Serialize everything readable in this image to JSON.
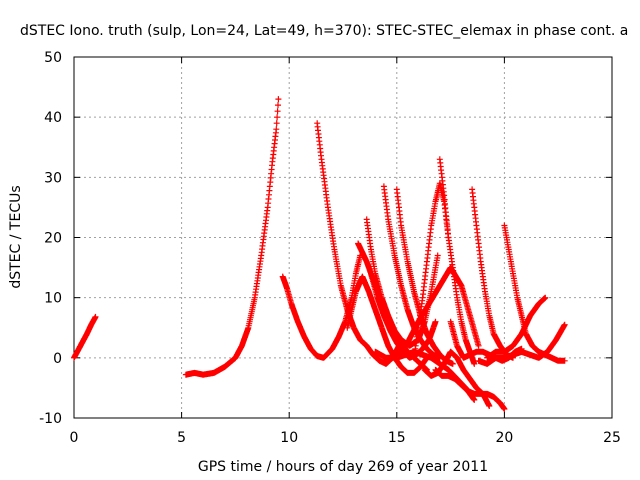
{
  "chart_data": {
    "type": "scatter",
    "title": "dSTEC Iono. truth (sulp, Lon=24, Lat=49, h=370): STEC-STEC_elemax in phase cont. a",
    "xlabel": "GPS time / hours of day 269 of year 2011",
    "ylabel": "dSTEC  / TECUs",
    "xlim": [
      0,
      25
    ],
    "ylim": [
      -10,
      50
    ],
    "x_ticks": [
      "0",
      "5",
      "10",
      "15",
      "20",
      "25"
    ],
    "y_ticks": [
      "-10",
      "0",
      "10",
      "20",
      "30",
      "40",
      "50"
    ],
    "grid": true,
    "marker": "+",
    "color": "#ff0000",
    "series": [
      {
        "x": [
          0.0,
          0.3,
          0.6,
          0.8,
          1.0
        ],
        "y": [
          0,
          2,
          4,
          5.5,
          6.8
        ]
      },
      {
        "x": [
          5.2,
          5.6,
          6.0,
          6.5,
          7.0,
          7.5,
          7.8,
          8.1,
          8.4,
          8.7,
          9.0,
          9.2,
          9.4,
          9.5
        ],
        "y": [
          -2.8,
          -2.5,
          -2.8,
          -2.5,
          -1.5,
          0,
          2,
          5,
          10,
          17,
          25,
          32,
          38,
          43
        ]
      },
      {
        "x": [
          9.7,
          9.9,
          10.1,
          10.4,
          10.7,
          11.0,
          11.3,
          11.6,
          12.0,
          12.3,
          12.6,
          12.9,
          13.1,
          13.3
        ],
        "y": [
          13.5,
          11.5,
          9,
          6,
          3.5,
          1.5,
          0.3,
          0,
          1.5,
          3.5,
          6,
          10,
          14,
          17
        ]
      },
      {
        "x": [
          11.3,
          11.5,
          11.8,
          12.1,
          12.4,
          12.7,
          13.0,
          13.3,
          13.6,
          13.9,
          14.2,
          14.5,
          14.8,
          15.1
        ],
        "y": [
          39,
          33,
          25,
          18,
          12,
          8,
          5,
          3,
          2,
          0.5,
          -0.5,
          -1,
          0,
          2
        ]
      },
      {
        "x": [
          12.7,
          12.9,
          13.1,
          13.4,
          13.7,
          14.0,
          14.3,
          14.6,
          14.9,
          15.2,
          15.5,
          15.8,
          16.1,
          16.4
        ],
        "y": [
          5,
          8,
          11,
          13.5,
          11,
          8,
          5,
          2,
          0,
          -1.5,
          -2.5,
          -2.5,
          -1.5,
          0
        ]
      },
      {
        "x": [
          13.6,
          13.8,
          14.0,
          14.3,
          14.6,
          14.9,
          15.2,
          15.5,
          15.8,
          16.1,
          16.4
        ],
        "y": [
          23,
          18,
          14,
          10,
          7,
          4.5,
          2.5,
          1,
          0,
          -1,
          -2
        ]
      },
      {
        "x": [
          13.8,
          14.1,
          14.4,
          14.7,
          15.0,
          15.3,
          15.6,
          15.9,
          16.2,
          16.5,
          16.8
        ],
        "y": [
          14,
          10,
          7,
          4.5,
          2.5,
          1,
          0,
          0.5,
          1.5,
          3,
          6
        ]
      },
      {
        "x": [
          14.4,
          14.6,
          14.9,
          15.2,
          15.5,
          15.8,
          16.1,
          16.4,
          16.7,
          17.0
        ],
        "y": [
          28.5,
          23,
          17,
          12,
          8,
          5,
          3,
          1.5,
          0.5,
          0
        ]
      },
      {
        "x": [
          15.0,
          15.2,
          15.5,
          15.8,
          16.1,
          16.4,
          16.7,
          17.0,
          17.3,
          17.6
        ],
        "y": [
          28,
          22,
          16,
          11,
          7,
          4,
          2,
          0.5,
          -0.5,
          -1
        ]
      },
      {
        "x": [
          13.2,
          13.6,
          14.0,
          14.4,
          14.8,
          15.2,
          15.6,
          16.0,
          16.3,
          16.6,
          16.9
        ],
        "y": [
          19,
          16,
          12,
          8,
          5,
          3,
          2,
          3,
          6,
          11,
          17
        ]
      },
      {
        "x": [
          14.0,
          14.5,
          15.0,
          15.4,
          15.8,
          16.2,
          16.6,
          17.0,
          17.4,
          17.8,
          18.2,
          18.6
        ],
        "y": [
          1,
          0,
          0,
          0.5,
          1,
          0.5,
          0,
          -1,
          -2,
          -3.5,
          -5,
          -7
        ]
      },
      {
        "x": [
          14.5,
          15.0,
          15.5,
          16.0,
          16.5,
          17.0,
          17.5,
          18.0,
          18.4,
          18.8
        ],
        "y": [
          -0.5,
          0.5,
          2.5,
          6,
          9,
          12,
          15,
          12,
          7,
          2
        ]
      },
      {
        "x": [
          15.8,
          16.0,
          16.2,
          16.4,
          16.6,
          16.8,
          17.0,
          17.2,
          17.4
        ],
        "y": [
          0,
          5,
          10,
          16,
          22,
          26,
          29,
          26,
          20
        ]
      },
      {
        "x": [
          16.3,
          16.6,
          16.9,
          17.2,
          17.5,
          17.8,
          18.1,
          18.4,
          18.7,
          19.0,
          19.3
        ],
        "y": [
          -2,
          -3,
          -2.5,
          -1,
          1,
          0,
          -2,
          -3.5,
          -5,
          -6,
          -8
        ]
      },
      {
        "x": [
          17.0,
          17.2,
          17.4,
          17.6,
          17.8,
          18.0,
          18.2,
          18.4,
          18.6
        ],
        "y": [
          33,
          27,
          20,
          15,
          10,
          6,
          3,
          1,
          -1
        ]
      },
      {
        "x": [
          16.8,
          17.1,
          17.4,
          17.7,
          18.0,
          18.3,
          18.6,
          18.9,
          19.2,
          19.5,
          19.8,
          20.0
        ],
        "y": [
          -2,
          -3,
          -3,
          -3.5,
          -4.5,
          -5.5,
          -6,
          -6,
          -6,
          -6.5,
          -7.5,
          -8.5
        ]
      },
      {
        "x": [
          17.5,
          17.8,
          18.1,
          18.4,
          18.7,
          19.0,
          19.3,
          19.6,
          19.9,
          20.2,
          20.5,
          20.8
        ],
        "y": [
          6,
          2,
          0,
          0.5,
          1,
          1,
          0.5,
          0,
          -0.5,
          0,
          1,
          1.5
        ]
      },
      {
        "x": [
          18.5,
          18.7,
          18.9,
          19.1,
          19.3,
          19.5,
          19.8,
          20.1,
          20.4
        ],
        "y": [
          28,
          22,
          16,
          11,
          7,
          4,
          2,
          0.5,
          0
        ]
      },
      {
        "x": [
          20.0,
          20.2,
          20.4,
          20.6,
          20.8,
          21.0,
          21.3,
          21.6,
          21.9,
          22.2,
          22.5,
          22.8
        ],
        "y": [
          22,
          18,
          14,
          10,
          7,
          4,
          2,
          1,
          0.5,
          0,
          -0.5,
          -0.5
        ]
      },
      {
        "x": [
          18.8,
          19.2,
          19.6,
          20.0,
          20.4,
          20.8,
          21.2,
          21.6,
          22.0,
          22.4,
          22.8
        ],
        "y": [
          -0.5,
          -1,
          0,
          0,
          0.5,
          1,
          0.5,
          0,
          1,
          3,
          5.5
        ]
      },
      {
        "x": [
          19.2,
          19.6,
          20.0,
          20.4,
          20.8,
          21.2,
          21.6,
          21.9
        ],
        "y": [
          0,
          1,
          1,
          2,
          4,
          7,
          9,
          10
        ]
      }
    ]
  }
}
